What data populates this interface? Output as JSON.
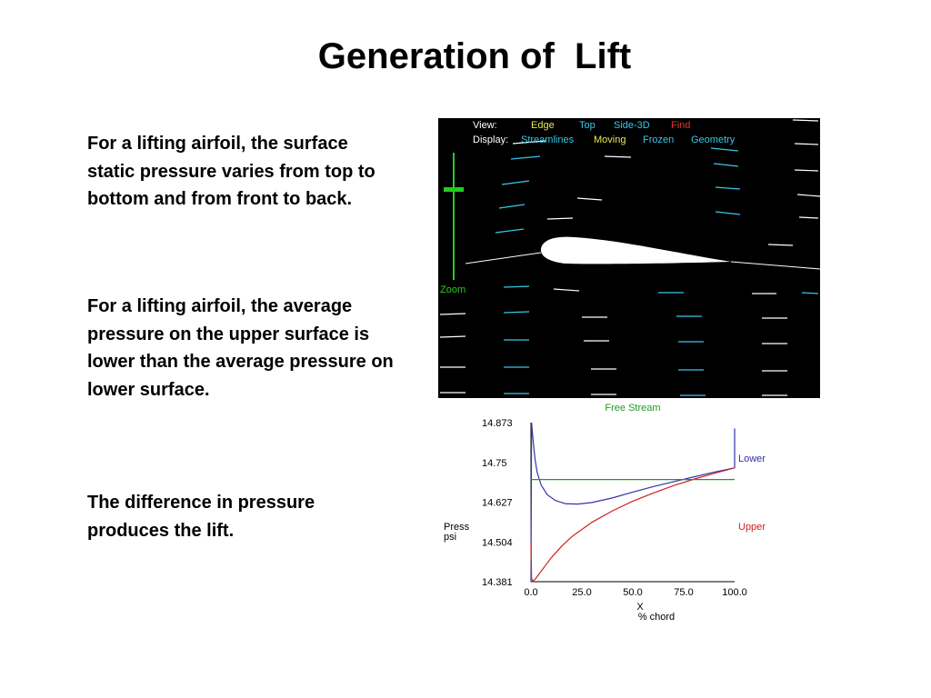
{
  "slide": {
    "title": "Generation of  Lift",
    "paragraphs": [
      "For a lifting airfoil, the surface static pressure varies from top to bottom and from front to back.",
      "For a lifting airfoil, the average pressure on the upper surface is lower than the average  pressure on lower surface.",
      "The difference in pressure produces the lift."
    ]
  },
  "simulator": {
    "view_label": "View:",
    "view_options": [
      {
        "label": "Edge",
        "color": "#e8e84a"
      },
      {
        "label": "Top",
        "color": "#38c8e8"
      },
      {
        "label": "Side-3D",
        "color": "#38c8e8"
      },
      {
        "label": "Find",
        "color": "#e83030"
      }
    ],
    "display_label": "Display:",
    "display_options": [
      {
        "label": "Streamlines",
        "color": "#38c8e8"
      },
      {
        "label": "Moving",
        "color": "#e8e84a"
      },
      {
        "label": "Frozen",
        "color": "#38c8e8"
      },
      {
        "label": "Geometry",
        "color": "#38c8e8"
      }
    ],
    "zoom_label": "Zoom",
    "colors": {
      "background": "#000000",
      "streak_white": "#ffffff",
      "streak_cyan": "#38c8e8",
      "zoom_green": "#22cc22"
    }
  },
  "free_stream_label": "Free Stream",
  "chart_data": {
    "type": "line",
    "ylabel": "Press\npsi",
    "xlabel": "X\n% chord",
    "xlim": [
      0,
      100
    ],
    "ylim": [
      14.381,
      14.873
    ],
    "x_ticks": [
      "0.0",
      "25.0",
      "50.0",
      "75.0",
      "100.0"
    ],
    "y_ticks": [
      "14.873",
      "14.75",
      "14.627",
      "14.504",
      "14.381"
    ],
    "series": [
      {
        "name": "Lower",
        "color": "#3333aa",
        "x": [
          0,
          0.3,
          1,
          2,
          3,
          5,
          8,
          12,
          17,
          23,
          30,
          40,
          50,
          60,
          70,
          80,
          90,
          100,
          100,
          100.2
        ],
        "y": [
          14.38,
          14.873,
          14.82,
          14.76,
          14.72,
          14.68,
          14.65,
          14.632,
          14.622,
          14.621,
          14.626,
          14.64,
          14.658,
          14.675,
          14.69,
          14.705,
          14.72,
          14.733,
          14.75,
          14.855
        ]
      },
      {
        "name": "Upper",
        "color": "#cc2222",
        "x": [
          0,
          0.3,
          1,
          2,
          4,
          7,
          10,
          15,
          20,
          30,
          40,
          50,
          60,
          70,
          80,
          90,
          100
        ],
        "y": [
          14.5,
          14.39,
          14.383,
          14.388,
          14.405,
          14.43,
          14.455,
          14.49,
          14.52,
          14.565,
          14.6,
          14.63,
          14.655,
          14.678,
          14.698,
          14.716,
          14.733
        ]
      },
      {
        "name": "Free Stream",
        "color": "#229922",
        "x": [
          0,
          100
        ],
        "y": [
          14.697,
          14.697
        ]
      }
    ]
  }
}
